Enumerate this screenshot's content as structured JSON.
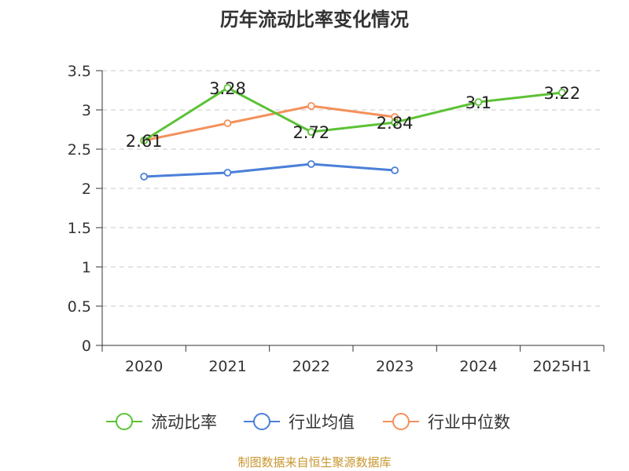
{
  "chart_data": {
    "type": "line",
    "title": "历年流动比率变化情况",
    "categories": [
      "2020",
      "2021",
      "2022",
      "2023",
      "2024",
      "2025H1"
    ],
    "ylim": [
      0,
      3.5
    ],
    "yticks": [
      "0",
      "0.5",
      "1",
      "1.5",
      "2",
      "2.5",
      "3",
      "3.5"
    ],
    "grid": true,
    "legend_position": "bottom",
    "series": [
      {
        "name": "流动比率",
        "color": "#5cc236",
        "values": [
          2.61,
          3.28,
          2.72,
          2.84,
          3.1,
          3.22
        ],
        "labels": [
          "2.61",
          "3.28",
          "2.72",
          "2.84",
          "3.1",
          "3.22"
        ]
      },
      {
        "name": "行业均值",
        "color": "#4a7fd8",
        "values": [
          2.15,
          2.2,
          2.31,
          2.23,
          null,
          null
        ]
      },
      {
        "name": "行业中位数",
        "color": "#f4905a",
        "values": [
          2.61,
          2.83,
          3.05,
          2.91,
          null,
          null
        ]
      }
    ]
  },
  "source": {
    "text": "制图数据来自恒生聚源数据库",
    "color": "#c8962e"
  }
}
